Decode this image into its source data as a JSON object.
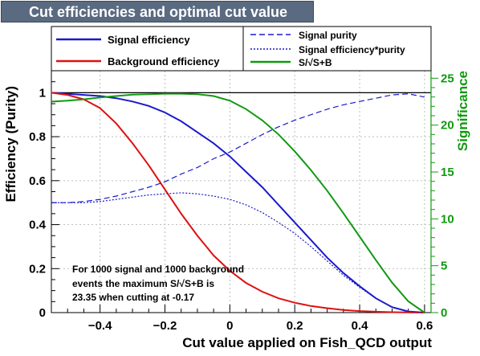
{
  "chart_data": {
    "type": "line",
    "title": "Cut efficiencies and optimal cut value",
    "xlabel": "Cut value applied on Fish_QCD output",
    "ylabel": "Efficiency (Purity)",
    "y2label": "Significance",
    "xlim": [
      -0.55,
      0.62
    ],
    "ylim": [
      0,
      1.1
    ],
    "y2lim": [
      0,
      25.8
    ],
    "xticks": [
      -0.4,
      -0.2,
      0,
      0.2,
      0.4,
      0.6
    ],
    "xtick_labels": [
      "−0.4",
      "−0.2",
      "0",
      "0.2",
      "0.4",
      "0.6"
    ],
    "yticks": [
      0,
      0.2,
      0.4,
      0.6,
      0.8,
      1
    ],
    "ytick_labels": [
      "0",
      "0.2",
      "0.4",
      "0.6",
      "0.8",
      "1"
    ],
    "y2ticks": [
      0,
      5,
      10,
      15,
      20,
      25
    ],
    "y2tick_labels": [
      "0",
      "5",
      "10",
      "15",
      "20",
      "25"
    ],
    "reference_line_y": 1,
    "x": [
      -0.55,
      -0.5,
      -0.45,
      -0.4,
      -0.35,
      -0.3,
      -0.25,
      -0.2,
      -0.15,
      -0.1,
      -0.05,
      0,
      0.05,
      0.1,
      0.15,
      0.2,
      0.25,
      0.3,
      0.35,
      0.4,
      0.45,
      0.5,
      0.55,
      0.6
    ],
    "series": [
      {
        "name": "Signal efficiency",
        "axis": "left",
        "color": "#1a1acc",
        "style": "solid",
        "values": [
          1.0,
          0.995,
          0.99,
          0.985,
          0.975,
          0.96,
          0.94,
          0.91,
          0.87,
          0.82,
          0.77,
          0.71,
          0.64,
          0.57,
          0.49,
          0.41,
          0.33,
          0.25,
          0.18,
          0.12,
          0.065,
          0.025,
          0.005,
          0.0
        ]
      },
      {
        "name": "Background efficiency",
        "axis": "left",
        "color": "#dd1111",
        "style": "solid",
        "values": [
          1.0,
          0.99,
          0.97,
          0.93,
          0.86,
          0.77,
          0.67,
          0.56,
          0.45,
          0.35,
          0.26,
          0.19,
          0.135,
          0.095,
          0.065,
          0.045,
          0.03,
          0.02,
          0.012,
          0.007,
          0.004,
          0.002,
          0.001,
          0.0
        ]
      },
      {
        "name": "Signal purity",
        "axis": "left",
        "color": "#1a1acc",
        "style": "dashed",
        "values": [
          0.5,
          0.5,
          0.505,
          0.515,
          0.53,
          0.55,
          0.57,
          0.595,
          0.63,
          0.66,
          0.7,
          0.73,
          0.77,
          0.81,
          0.845,
          0.875,
          0.9,
          0.925,
          0.945,
          0.96,
          0.975,
          0.99,
          0.995,
          0.98
        ]
      },
      {
        "name": "Signal efficiency*purity",
        "axis": "left",
        "color": "#1a1acc",
        "style": "dotted",
        "values": [
          0.5,
          0.5,
          0.5,
          0.505,
          0.515,
          0.525,
          0.535,
          0.54,
          0.545,
          0.54,
          0.53,
          0.515,
          0.49,
          0.455,
          0.41,
          0.36,
          0.3,
          0.235,
          0.17,
          0.115,
          0.065,
          0.025,
          0.005,
          0.0
        ]
      },
      {
        "name": "S/√S+B",
        "axis": "right",
        "color": "#119911",
        "style": "solid",
        "values": [
          22.5,
          22.6,
          22.75,
          22.95,
          23.1,
          23.25,
          23.3,
          23.35,
          23.35,
          23.3,
          23.1,
          22.6,
          21.7,
          20.5,
          19.0,
          17.2,
          15.2,
          13.0,
          10.6,
          8.1,
          5.6,
          3.2,
          1.2,
          0.0
        ]
      }
    ],
    "legend": {
      "position": "top",
      "entries": [
        {
          "label": "Signal efficiency",
          "color": "#1a1acc",
          "style": "solid"
        },
        {
          "label": "Background efficiency",
          "color": "#dd1111",
          "style": "solid"
        },
        {
          "label": "Signal purity",
          "color": "#1a1acc",
          "style": "dashed"
        },
        {
          "label": "Signal efficiency*purity",
          "color": "#1a1acc",
          "style": "dotted"
        },
        {
          "label": "S/√S+B",
          "color": "#119911",
          "style": "solid"
        }
      ]
    },
    "annotation": {
      "lines": [
        "For 1000 signal and 1000 background",
        "events the maximum S/√S+B is",
        "23.35 when cutting at -0.17"
      ]
    },
    "grid": true,
    "colors": {
      "axis_right": "#119911",
      "title_bg": "#5a6a80"
    }
  }
}
